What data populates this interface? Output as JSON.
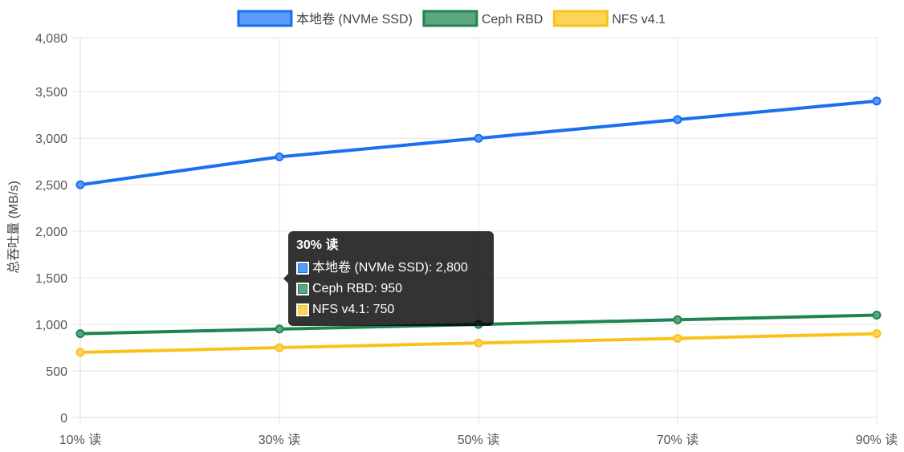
{
  "chart_data": {
    "type": "line",
    "title": "",
    "xlabel": "",
    "ylabel": "总吞吐量 (MB/s)",
    "categories": [
      "10% 读",
      "30% 读",
      "50% 读",
      "70% 读",
      "90% 读"
    ],
    "ylim": [
      0,
      4080
    ],
    "yticks": [
      "0",
      "500",
      "1,000",
      "1,500",
      "2,000",
      "2,500",
      "3,000",
      "3,500",
      "4,080"
    ],
    "ytick_values": [
      0,
      500,
      1000,
      1500,
      2000,
      2500,
      3000,
      3500,
      4080
    ],
    "grid": true,
    "legend_position": "top",
    "series": [
      {
        "name": "本地卷 (NVMe SSD)",
        "color": "#1a6ff0",
        "fill": "#5b9bf8",
        "values": [
          2500,
          2800,
          3000,
          3200,
          3400
        ]
      },
      {
        "name": "Ceph RBD",
        "color": "#1e8452",
        "fill": "#5aa67f",
        "values": [
          900,
          950,
          1000,
          1050,
          1100
        ]
      },
      {
        "name": "NFS v4.1",
        "color": "#fbc11a",
        "fill": "#fdd35a",
        "values": [
          700,
          750,
          800,
          850,
          900
        ]
      }
    ]
  },
  "tooltip": {
    "title": "30% 读",
    "rows": [
      {
        "label": "本地卷 (NVMe SSD): 2,800",
        "color": "#1a6ff0",
        "fill": "#5b9bf8"
      },
      {
        "label": "Ceph RBD: 950",
        "color": "#1e8452",
        "fill": "#5aa67f"
      },
      {
        "label": "NFS v4.1: 750",
        "color": "#fbc11a",
        "fill": "#fdd35a"
      }
    ]
  }
}
